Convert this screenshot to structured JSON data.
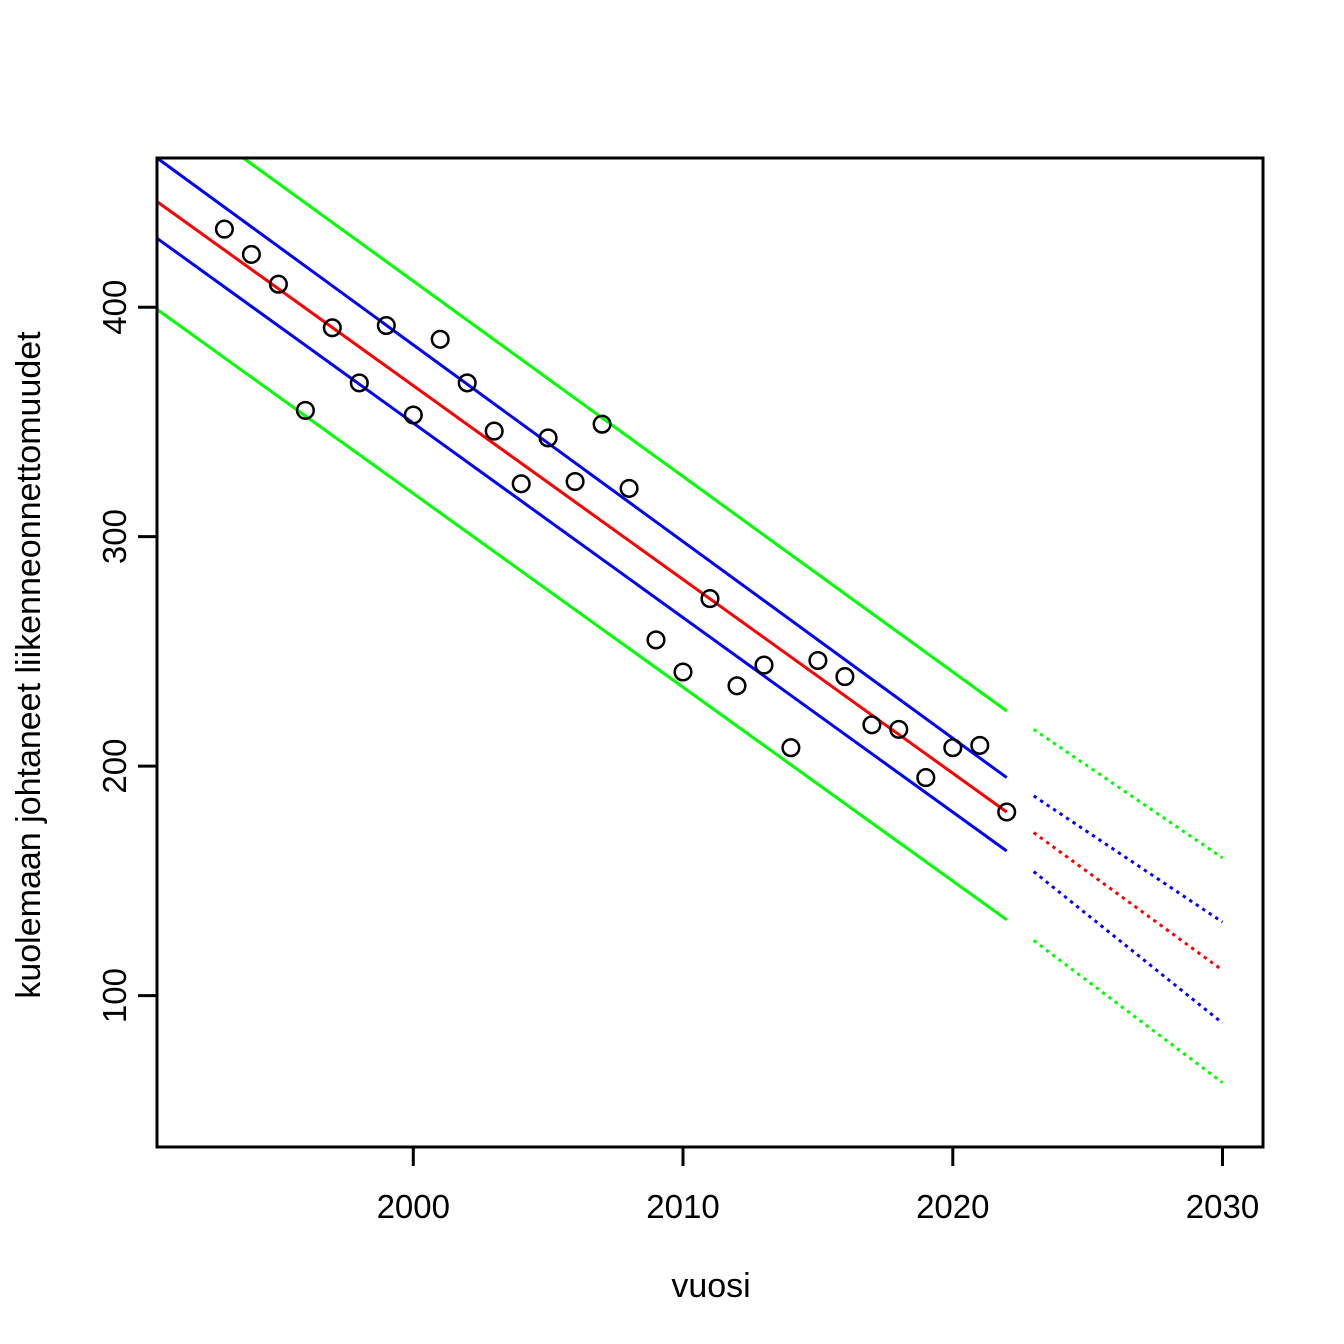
{
  "figure": {
    "background": "#FFFFFF",
    "description": "Scatter plot of Finnish fatal traffic accidents per year with linear regression fit, confidence band, prediction band, and dotted forecast to 2030"
  },
  "chart_data": {
    "type": "scatter",
    "title": "",
    "xlabel": "vuosi",
    "ylabel": "kuolemaan johtaneet liikenneonnettomuudet",
    "x_range": [
      1990.5,
      2031.5
    ],
    "y_range": [
      34,
      465
    ],
    "x_ticks": [
      2000,
      2010,
      2020,
      2030
    ],
    "y_ticks": [
      100,
      200,
      300,
      400
    ],
    "grid": "off",
    "legend": "none",
    "points": {
      "marker": "open-circle",
      "color": "#000000",
      "x": [
        1993,
        1994,
        1995,
        1996,
        1997,
        1998,
        1999,
        2000,
        2001,
        2002,
        2003,
        2004,
        2005,
        2006,
        2007,
        2008,
        2009,
        2010,
        2011,
        2012,
        2013,
        2014,
        2015,
        2016,
        2017,
        2018,
        2019,
        2020,
        2021,
        2022
      ],
      "y": [
        434,
        423,
        410,
        355,
        391,
        367,
        392,
        353,
        386,
        367,
        346,
        323,
        343,
        324,
        349,
        321,
        255,
        241,
        273,
        235,
        244,
        208,
        246,
        239,
        218,
        216,
        195,
        208,
        209,
        180
      ]
    },
    "series": [
      {
        "name": "regression-fit",
        "color": "#FF0000",
        "style": "solid",
        "x": [
          1990.5,
          2022
        ],
        "y": [
          446,
          180
        ]
      },
      {
        "name": "regression-fit-forecast",
        "color": "#FF0000",
        "style": "dotted",
        "x": [
          2023,
          2030
        ],
        "y": [
          171,
          111
        ]
      },
      {
        "name": "confidence-upper",
        "color": "#0000FF",
        "style": "solid",
        "x": [
          1990.5,
          2022
        ],
        "y": [
          465,
          195
        ]
      },
      {
        "name": "confidence-upper-forecast",
        "color": "#0000FF",
        "style": "dotted",
        "x": [
          2023,
          2030
        ],
        "y": [
          187,
          132
        ]
      },
      {
        "name": "confidence-lower",
        "color": "#0000FF",
        "style": "solid",
        "x": [
          1990.5,
          2022
        ],
        "y": [
          430,
          163
        ]
      },
      {
        "name": "confidence-lower-forecast",
        "color": "#0000FF",
        "style": "dotted",
        "x": [
          2023,
          2030
        ],
        "y": [
          154,
          88
        ]
      },
      {
        "name": "prediction-upper",
        "color": "#00FF00",
        "style": "solid",
        "x": [
          1993.7,
          2022
        ],
        "y": [
          465,
          224
        ]
      },
      {
        "name": "prediction-upper-forecast",
        "color": "#00FF00",
        "style": "dotted",
        "x": [
          2023,
          2030
        ],
        "y": [
          216,
          160
        ]
      },
      {
        "name": "prediction-lower",
        "color": "#00FF00",
        "style": "solid",
        "x": [
          1990.5,
          2022
        ],
        "y": [
          399,
          133
        ]
      },
      {
        "name": "prediction-lower-forecast",
        "color": "#00FF00",
        "style": "dotted",
        "x": [
          2023,
          2030
        ],
        "y": [
          124,
          62
        ]
      }
    ]
  }
}
